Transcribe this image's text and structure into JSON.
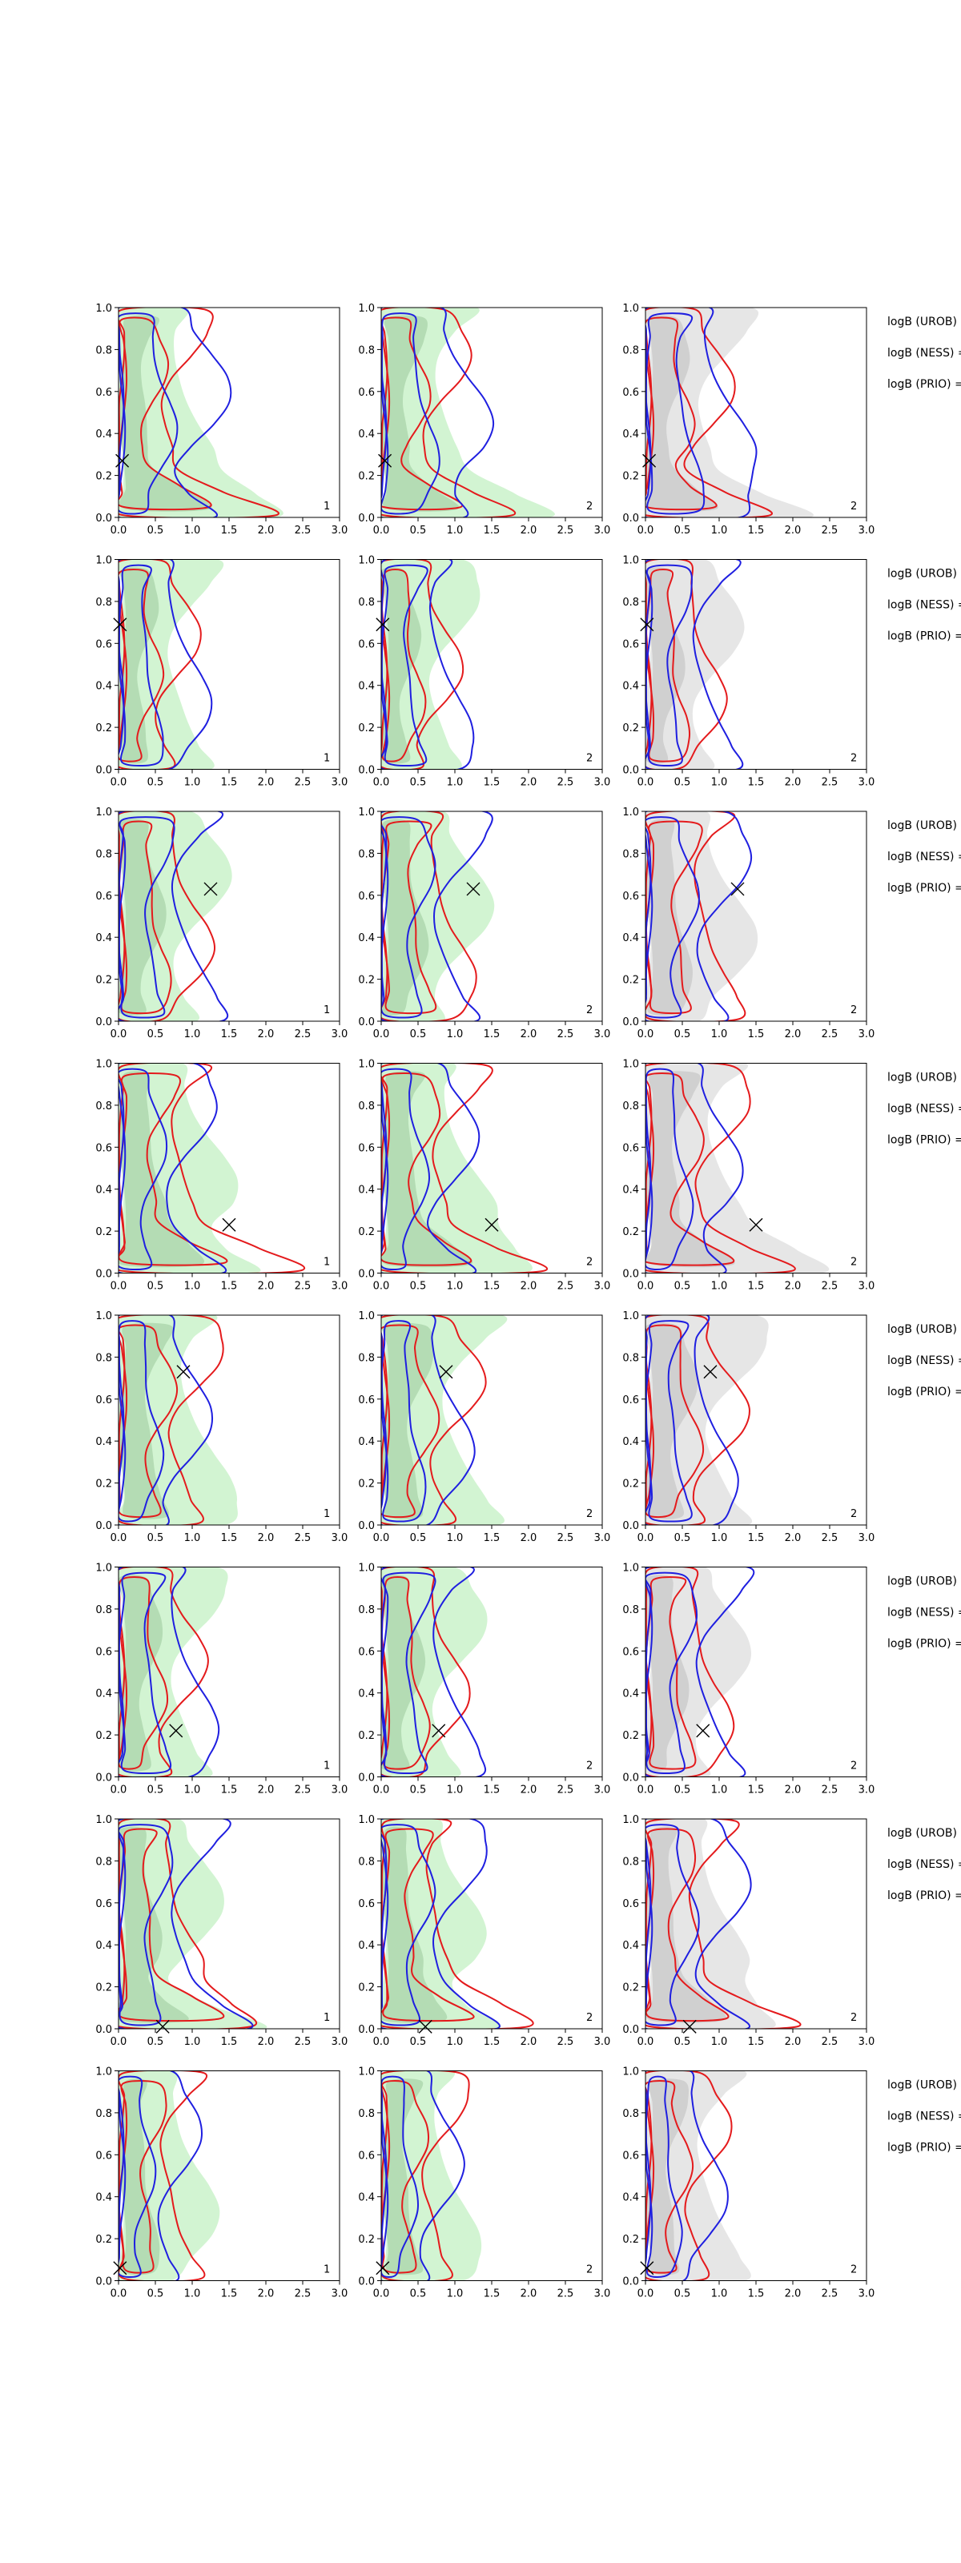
{
  "chart_data": {
    "type": "contour",
    "layout": "8 rows x 3 columns grid of 2D density contour panels",
    "xlim": [
      0.0,
      3.0
    ],
    "ylim": [
      0.0,
      1.0
    ],
    "xticks": [
      "0.0",
      "0.5",
      "1.0",
      "1.5",
      "2.0",
      "2.5",
      "3.0"
    ],
    "yticks": [
      "0.0",
      "0.2",
      "0.4",
      "0.6",
      "0.8",
      "1.0"
    ],
    "panel_labels": [
      "1",
      "2",
      "2"
    ],
    "column_fill_colors": [
      "#9be69b",
      "#9be69b",
      "#c8c8c8"
    ],
    "series_colors": {
      "red": "#e41a1c",
      "blue": "#1f1fe0",
      "gray": "#bdbdbd"
    },
    "row_annotations": [
      "logB (UROB) =",
      "logB (NESS) =",
      "logB (PRIO) ="
    ],
    "rows": [
      {
        "truth": [
          0.05,
          0.27
        ],
        "red_w": 0.9,
        "red_x": 0.65,
        "blue_x": 0.95,
        "tail": true
      },
      {
        "truth": [
          0.02,
          0.69
        ],
        "red_w": 0.8,
        "red_x": 0.55,
        "blue_x": 0.7,
        "tail": false
      },
      {
        "truth": [
          1.25,
          0.63
        ],
        "red_w": 1.0,
        "red_x": 0.7,
        "blue_x": 0.85,
        "tail": false
      },
      {
        "truth": [
          1.5,
          0.23
        ],
        "red_w": 1.1,
        "red_x": 0.6,
        "blue_x": 0.75,
        "tail": true
      },
      {
        "truth": [
          0.88,
          0.73
        ],
        "red_w": 1.1,
        "red_x": 0.65,
        "blue_x": 0.7,
        "tail": false
      },
      {
        "truth": [
          0.78,
          0.22
        ],
        "red_w": 0.9,
        "red_x": 0.6,
        "blue_x": 0.8,
        "tail": false
      },
      {
        "truth": [
          0.6,
          0.01
        ],
        "red_w": 0.9,
        "red_x": 0.6,
        "blue_x": 0.85,
        "tail": true
      },
      {
        "truth": [
          0.02,
          0.06
        ],
        "red_w": 0.85,
        "red_x": 0.55,
        "blue_x": 0.55,
        "tail": false
      }
    ]
  }
}
